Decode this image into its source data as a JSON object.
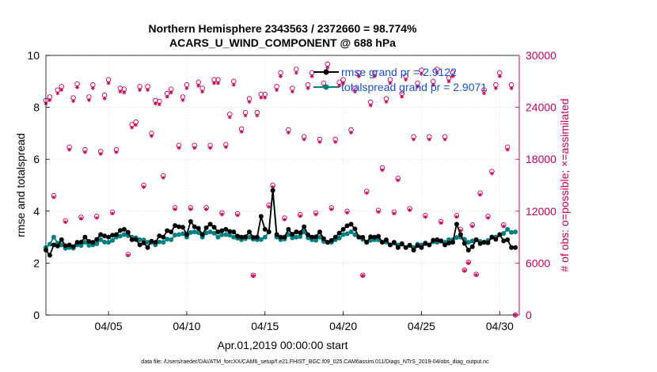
{
  "chart_data": {
    "type": "line",
    "title_line1": "Northern Hemisphere 2343563 / 2372660 = 98.774%",
    "title_line2": "ACARS_U_WIND_COMPONENT @ 688 hPa",
    "xlabel": "Apr.01,2019 00:00:00 start",
    "ylabel_left": "rmse and totalspread",
    "ylabel_right": "# of obs: o=possible; ×=assimilated",
    "footer": "data file: /Users/raeder/DAI/ATM_forcXX/CAM6_setup/f.e21.FHIST_BGC.f09_025.CAM6assim.011/Diags_NTrS_2019-04/obs_diag_output.nc",
    "xlim": [
      1.0,
      31.25
    ],
    "ylim_left": [
      0,
      10
    ],
    "ylim_right": [
      0,
      30000
    ],
    "x_ticks": [
      5,
      10,
      15,
      20,
      25,
      30
    ],
    "x_tick_labels": [
      "04/05",
      "04/10",
      "04/15",
      "04/20",
      "04/25",
      "04/30"
    ],
    "y_left_ticks": [
      "0",
      "2",
      "4",
      "6",
      "8",
      "10"
    ],
    "y_right_ticks": [
      "0",
      "6000",
      "12000",
      "18000",
      "24000",
      "30000"
    ],
    "grid": true,
    "colors": {
      "rmse": "#000000",
      "spread": "#008080",
      "obs": "#c8005a",
      "legend_text": "#1a4fd6"
    },
    "series": [
      {
        "name": "rmse",
        "legend": "rmse grand pr = 2.9122",
        "knots": [
          [
            1.0,
            2.5
          ],
          [
            1.25,
            2.3
          ],
          [
            1.5,
            2.7
          ],
          [
            2.0,
            2.9
          ],
          [
            2.5,
            2.7
          ],
          [
            3.0,
            2.8
          ],
          [
            3.5,
            3.0
          ],
          [
            4.0,
            2.8
          ],
          [
            4.5,
            3.1
          ],
          [
            5.0,
            3.0
          ],
          [
            5.5,
            3.1
          ],
          [
            6.0,
            3.3
          ],
          [
            6.5,
            2.9
          ],
          [
            7.0,
            2.7
          ],
          [
            7.5,
            2.6
          ],
          [
            8.0,
            2.8
          ],
          [
            8.5,
            3.0
          ],
          [
            9.0,
            3.2
          ],
          [
            9.5,
            3.4
          ],
          [
            10.0,
            3.1
          ],
          [
            10.25,
            3.6
          ],
          [
            10.5,
            3.4
          ],
          [
            11.0,
            3.1
          ],
          [
            11.5,
            3.5
          ],
          [
            12.0,
            3.2
          ],
          [
            12.5,
            3.3
          ],
          [
            13.0,
            3.2
          ],
          [
            13.5,
            3.0
          ],
          [
            14.0,
            3.2
          ],
          [
            14.5,
            3.0
          ],
          [
            14.75,
            3.8
          ],
          [
            15.0,
            3.3
          ],
          [
            15.25,
            3.2
          ],
          [
            15.5,
            4.8
          ],
          [
            15.75,
            3.1
          ],
          [
            16.0,
            3.0
          ],
          [
            16.5,
            3.3
          ],
          [
            17.0,
            3.2
          ],
          [
            17.5,
            3.4
          ],
          [
            18.0,
            3.0
          ],
          [
            18.5,
            3.2
          ],
          [
            19.0,
            2.8
          ],
          [
            19.5,
            3.0
          ],
          [
            20.0,
            3.3
          ],
          [
            20.5,
            3.5
          ],
          [
            21.0,
            3.0
          ],
          [
            21.5,
            2.8
          ],
          [
            22.0,
            3.0
          ],
          [
            22.5,
            2.8
          ],
          [
            23.0,
            2.7
          ],
          [
            23.5,
            2.6
          ],
          [
            24.0,
            2.6
          ],
          [
            24.5,
            2.5
          ],
          [
            25.0,
            2.6
          ],
          [
            25.5,
            2.7
          ],
          [
            26.0,
            2.9
          ],
          [
            26.5,
            2.7
          ],
          [
            27.0,
            2.8
          ],
          [
            27.25,
            3.5
          ],
          [
            27.5,
            3.1
          ],
          [
            28.0,
            2.5
          ],
          [
            28.5,
            2.9
          ],
          [
            29.0,
            2.8
          ],
          [
            29.5,
            3.0
          ],
          [
            30.0,
            3.1
          ],
          [
            30.5,
            2.9
          ],
          [
            31.0,
            2.6
          ]
        ]
      },
      {
        "name": "totalspread",
        "legend": "totalspread grand pr = 2.9071",
        "knots": [
          [
            1.0,
            2.6
          ],
          [
            1.5,
            3.0
          ],
          [
            2.0,
            2.7
          ],
          [
            2.5,
            2.6
          ],
          [
            3.0,
            2.7
          ],
          [
            3.5,
            2.8
          ],
          [
            4.0,
            2.7
          ],
          [
            4.5,
            2.9
          ],
          [
            5.0,
            2.8
          ],
          [
            5.5,
            3.0
          ],
          [
            6.0,
            3.1
          ],
          [
            6.5,
            3.0
          ],
          [
            7.0,
            2.9
          ],
          [
            7.5,
            2.8
          ],
          [
            8.0,
            2.7
          ],
          [
            8.5,
            2.8
          ],
          [
            9.0,
            2.9
          ],
          [
            9.5,
            3.1
          ],
          [
            10.0,
            3.0
          ],
          [
            10.5,
            3.2
          ],
          [
            11.0,
            3.0
          ],
          [
            11.5,
            3.2
          ],
          [
            12.0,
            3.0
          ],
          [
            12.5,
            3.1
          ],
          [
            13.0,
            3.0
          ],
          [
            13.5,
            2.9
          ],
          [
            14.0,
            3.0
          ],
          [
            14.5,
            2.9
          ],
          [
            15.0,
            3.0
          ],
          [
            15.25,
            3.2
          ],
          [
            15.5,
            4.8
          ],
          [
            15.75,
            3.0
          ],
          [
            16.0,
            2.9
          ],
          [
            16.5,
            3.1
          ],
          [
            17.0,
            3.0
          ],
          [
            17.5,
            3.2
          ],
          [
            18.0,
            2.9
          ],
          [
            18.5,
            3.0
          ],
          [
            19.0,
            2.8
          ],
          [
            19.5,
            2.9
          ],
          [
            20.0,
            3.1
          ],
          [
            20.5,
            3.2
          ],
          [
            21.0,
            3.0
          ],
          [
            21.5,
            2.8
          ],
          [
            22.0,
            2.9
          ],
          [
            22.5,
            2.8
          ],
          [
            23.0,
            2.7
          ],
          [
            23.5,
            2.7
          ],
          [
            24.0,
            2.6
          ],
          [
            24.5,
            2.6
          ],
          [
            25.0,
            2.7
          ],
          [
            25.5,
            2.7
          ],
          [
            26.0,
            2.8
          ],
          [
            26.5,
            2.8
          ],
          [
            27.0,
            2.9
          ],
          [
            27.5,
            3.0
          ],
          [
            28.0,
            2.8
          ],
          [
            28.5,
            2.9
          ],
          [
            29.0,
            2.8
          ],
          [
            29.5,
            3.0
          ],
          [
            30.0,
            3.1
          ],
          [
            30.5,
            3.3
          ],
          [
            31.0,
            3.2
          ]
        ]
      }
    ],
    "obs_possible": [
      [
        1.0,
        24800
      ],
      [
        1.25,
        25200
      ],
      [
        1.5,
        13800
      ],
      [
        1.75,
        26000
      ],
      [
        2.0,
        26400
      ],
      [
        2.25,
        10900
      ],
      [
        2.5,
        19400
      ],
      [
        2.75,
        25100
      ],
      [
        3.0,
        26700
      ],
      [
        3.25,
        11300
      ],
      [
        3.5,
        19100
      ],
      [
        3.75,
        25200
      ],
      [
        4.0,
        26600
      ],
      [
        4.25,
        11400
      ],
      [
        4.5,
        18900
      ],
      [
        4.75,
        25400
      ],
      [
        5.0,
        27200
      ],
      [
        5.25,
        11900
      ],
      [
        5.5,
        19100
      ],
      [
        5.75,
        26200
      ],
      [
        6.0,
        26100
      ],
      [
        6.25,
        7000
      ],
      [
        6.5,
        22000
      ],
      [
        6.75,
        22300
      ],
      [
        7.0,
        26400
      ],
      [
        7.25,
        15000
      ],
      [
        7.5,
        26400
      ],
      [
        7.75,
        21000
      ],
      [
        8.0,
        24800
      ],
      [
        8.25,
        24700
      ],
      [
        8.5,
        16100
      ],
      [
        8.75,
        25600
      ],
      [
        9.0,
        26100
      ],
      [
        9.25,
        12400
      ],
      [
        9.5,
        19600
      ],
      [
        9.75,
        25200
      ],
      [
        10.0,
        26600
      ],
      [
        10.25,
        12400
      ],
      [
        10.5,
        19600
      ],
      [
        10.75,
        26900
      ],
      [
        11.0,
        26200
      ],
      [
        11.25,
        12400
      ],
      [
        11.5,
        19600
      ],
      [
        11.75,
        27200
      ],
      [
        12.0,
        27200
      ],
      [
        12.25,
        11800
      ],
      [
        12.5,
        19700
      ],
      [
        12.75,
        23200
      ],
      [
        13.0,
        27000
      ],
      [
        13.25,
        11700
      ],
      [
        13.5,
        21500
      ],
      [
        13.75,
        23400
      ],
      [
        14.0,
        25000
      ],
      [
        14.25,
        4600
      ],
      [
        14.5,
        23400
      ],
      [
        14.75,
        25500
      ],
      [
        15.0,
        25500
      ],
      [
        15.25,
        12700
      ],
      [
        15.5,
        15000
      ],
      [
        15.75,
        26400
      ],
      [
        16.0,
        28000
      ],
      [
        16.25,
        11200
      ],
      [
        16.5,
        21400
      ],
      [
        16.75,
        26200
      ],
      [
        17.0,
        28400
      ],
      [
        17.25,
        11600
      ],
      [
        17.5,
        20600
      ],
      [
        17.75,
        26600
      ],
      [
        18.0,
        28000
      ],
      [
        18.25,
        11800
      ],
      [
        18.5,
        20300
      ],
      [
        18.75,
        26800
      ],
      [
        19.0,
        29000
      ],
      [
        19.25,
        12400
      ],
      [
        19.5,
        20300
      ],
      [
        19.75,
        26900
      ],
      [
        20.0,
        27200
      ],
      [
        20.25,
        12000
      ],
      [
        20.5,
        21400
      ],
      [
        20.75,
        26200
      ],
      [
        21.0,
        28000
      ],
      [
        21.25,
        4600
      ],
      [
        21.5,
        14300
      ],
      [
        21.75,
        24600
      ],
      [
        22.0,
        28000
      ],
      [
        22.25,
        12100
      ],
      [
        22.5,
        17000
      ],
      [
        22.75,
        25000
      ],
      [
        23.0,
        27200
      ],
      [
        23.25,
        11900
      ],
      [
        23.5,
        15800
      ],
      [
        23.75,
        25600
      ],
      [
        24.0,
        27600
      ],
      [
        24.25,
        12300
      ],
      [
        24.5,
        20600
      ],
      [
        24.75,
        26800
      ],
      [
        25.0,
        28300
      ],
      [
        25.25,
        11500
      ],
      [
        25.5,
        20600
      ],
      [
        25.75,
        27000
      ],
      [
        26.0,
        28400
      ],
      [
        26.25,
        10800
      ],
      [
        26.5,
        20600
      ],
      [
        26.75,
        27400
      ],
      [
        27.0,
        28000
      ],
      [
        27.25,
        11500
      ],
      [
        27.5,
        9900
      ],
      [
        27.75,
        5200
      ],
      [
        28.0,
        6100
      ],
      [
        28.25,
        10400
      ],
      [
        28.5,
        4700
      ],
      [
        28.75,
        14100
      ],
      [
        29.0,
        26000
      ],
      [
        29.25,
        11400
      ],
      [
        29.5,
        16600
      ],
      [
        29.75,
        26600
      ],
      [
        30.0,
        28000
      ],
      [
        30.25,
        10400
      ],
      [
        30.5,
        19400
      ],
      [
        30.75,
        26600
      ],
      [
        31.0,
        0
      ]
    ]
  }
}
